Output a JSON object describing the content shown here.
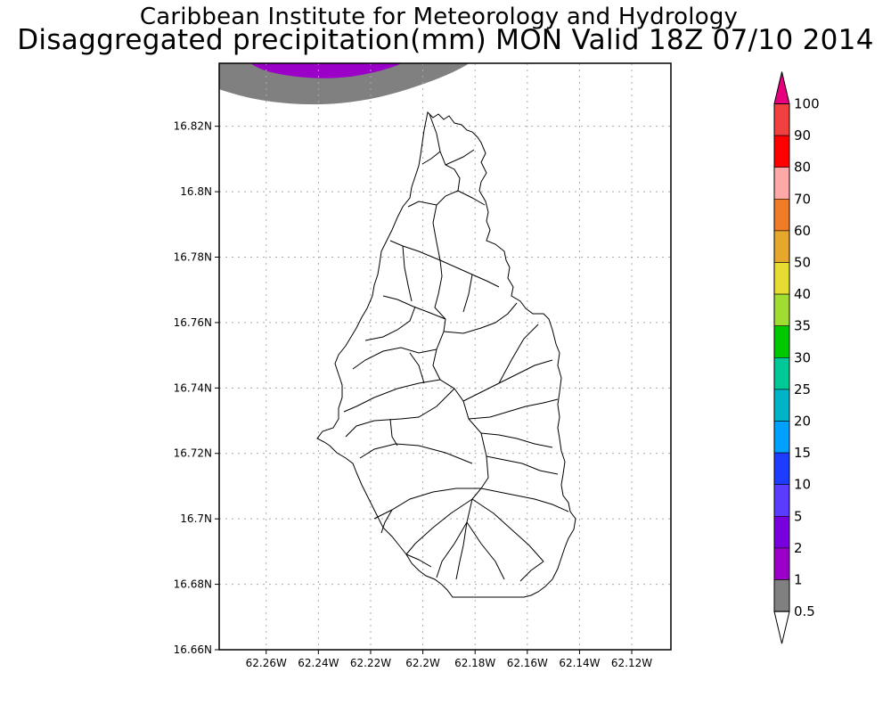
{
  "header": {
    "organization": "Caribbean Institute for Meteorology and Hydrology",
    "product": "Disaggregated precipitation(mm) MON Valid 18Z 07/10 2014"
  },
  "map": {
    "lat_labels": [
      "16.82N",
      "16.8N",
      "16.78N",
      "16.76N",
      "16.74N",
      "16.72N",
      "16.7N",
      "16.68N",
      "16.66N"
    ],
    "lon_labels": [
      "62.26W",
      "62.24W",
      "62.22W",
      "62.2W",
      "62.18W",
      "62.16W",
      "62.14W",
      "62.12W"
    ],
    "lat_range": [
      16.66,
      16.83925
    ],
    "lon_range": [
      62.278,
      62.105
    ],
    "shaded_regions": [
      {
        "range_mm": "0.5-1",
        "color": "#808080"
      },
      {
        "range_mm": "1-2",
        "color": "#9b00c8"
      }
    ]
  },
  "colorbar": {
    "labels": [
      "100",
      "90",
      "80",
      "70",
      "60",
      "50",
      "40",
      "35",
      "30",
      "25",
      "20",
      "15",
      "10",
      "5",
      "2",
      "1",
      "0.5"
    ],
    "top_color": "#e6007e",
    "colors": [
      "#f04040",
      "#ff0000",
      "#ffa8a8",
      "#f07c28",
      "#e6a82c",
      "#e6dc32",
      "#a0dc32",
      "#00c800",
      "#00c896",
      "#00b4c8",
      "#00a0ff",
      "#1e3cff",
      "#5a3cff",
      "#7800dc",
      "#9b00c8",
      "#808080"
    ],
    "bottom_color": "#ffffff"
  }
}
